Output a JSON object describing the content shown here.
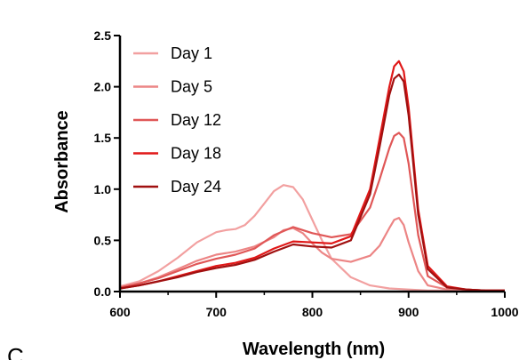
{
  "panel_label": "C",
  "chart_data": {
    "type": "line",
    "xlabel": "Wavelength (nm)",
    "ylabel": "Absorbance",
    "xlim": [
      600,
      1000
    ],
    "ylim": [
      0,
      2.5
    ],
    "xticks": [
      "600",
      "700",
      "800",
      "900",
      "1000"
    ],
    "yticks": [
      "0.0",
      "0.5",
      "1.0",
      "1.5",
      "2.0",
      "2.5"
    ],
    "legend_position": "top-left",
    "grid": false,
    "series": [
      {
        "name": "Day 1",
        "color": "#f2a0a0",
        "x": [
          600,
          620,
          640,
          660,
          680,
          700,
          710,
          720,
          730,
          740,
          750,
          760,
          770,
          780,
          790,
          800,
          810,
          820,
          840,
          860,
          880,
          900,
          920,
          940,
          960,
          980,
          1000
        ],
        "y": [
          0.05,
          0.1,
          0.2,
          0.33,
          0.48,
          0.58,
          0.6,
          0.61,
          0.65,
          0.74,
          0.86,
          0.98,
          1.04,
          1.02,
          0.9,
          0.7,
          0.5,
          0.32,
          0.14,
          0.06,
          0.03,
          0.02,
          0.01,
          0.01,
          0.01,
          0.01,
          0.01
        ]
      },
      {
        "name": "Day 5",
        "color": "#ec8585",
        "x": [
          600,
          620,
          640,
          660,
          680,
          700,
          720,
          740,
          760,
          770,
          780,
          790,
          800,
          810,
          820,
          840,
          860,
          870,
          880,
          885,
          890,
          895,
          900,
          910,
          920,
          940,
          960,
          980,
          1000
        ],
        "y": [
          0.04,
          0.08,
          0.14,
          0.22,
          0.3,
          0.36,
          0.39,
          0.44,
          0.53,
          0.6,
          0.62,
          0.57,
          0.47,
          0.38,
          0.32,
          0.29,
          0.35,
          0.45,
          0.62,
          0.7,
          0.72,
          0.65,
          0.48,
          0.2,
          0.06,
          0.02,
          0.01,
          0.01,
          0.01
        ]
      },
      {
        "name": "Day 12",
        "color": "#e05757",
        "x": [
          600,
          620,
          640,
          660,
          680,
          700,
          720,
          740,
          760,
          780,
          800,
          820,
          840,
          860,
          870,
          880,
          885,
          890,
          895,
          900,
          910,
          920,
          940,
          960,
          980,
          1000
        ],
        "y": [
          0.04,
          0.08,
          0.13,
          0.2,
          0.27,
          0.32,
          0.36,
          0.42,
          0.55,
          0.63,
          0.57,
          0.53,
          0.56,
          0.82,
          1.1,
          1.4,
          1.52,
          1.55,
          1.5,
          1.25,
          0.55,
          0.15,
          0.04,
          0.02,
          0.01,
          0.01
        ]
      },
      {
        "name": "Day 18",
        "color": "#e01818",
        "x": [
          600,
          620,
          640,
          660,
          680,
          700,
          720,
          740,
          760,
          780,
          800,
          820,
          840,
          860,
          870,
          880,
          885,
          890,
          895,
          900,
          910,
          920,
          940,
          960,
          980,
          1000
        ],
        "y": [
          0.03,
          0.06,
          0.1,
          0.15,
          0.2,
          0.25,
          0.28,
          0.33,
          0.42,
          0.49,
          0.48,
          0.47,
          0.54,
          1.0,
          1.5,
          2.0,
          2.2,
          2.25,
          2.15,
          1.8,
          0.8,
          0.25,
          0.05,
          0.02,
          0.01,
          0.01
        ]
      },
      {
        "name": "Day 24",
        "color": "#a01010",
        "x": [
          600,
          620,
          640,
          660,
          680,
          700,
          720,
          740,
          760,
          780,
          800,
          820,
          840,
          860,
          870,
          880,
          885,
          890,
          895,
          900,
          910,
          920,
          940,
          960,
          980,
          1000
        ],
        "y": [
          0.03,
          0.06,
          0.1,
          0.14,
          0.19,
          0.23,
          0.26,
          0.31,
          0.39,
          0.46,
          0.44,
          0.43,
          0.5,
          0.95,
          1.42,
          1.92,
          2.08,
          2.12,
          2.05,
          1.72,
          0.75,
          0.22,
          0.04,
          0.02,
          0.01,
          0.01
        ]
      }
    ]
  }
}
